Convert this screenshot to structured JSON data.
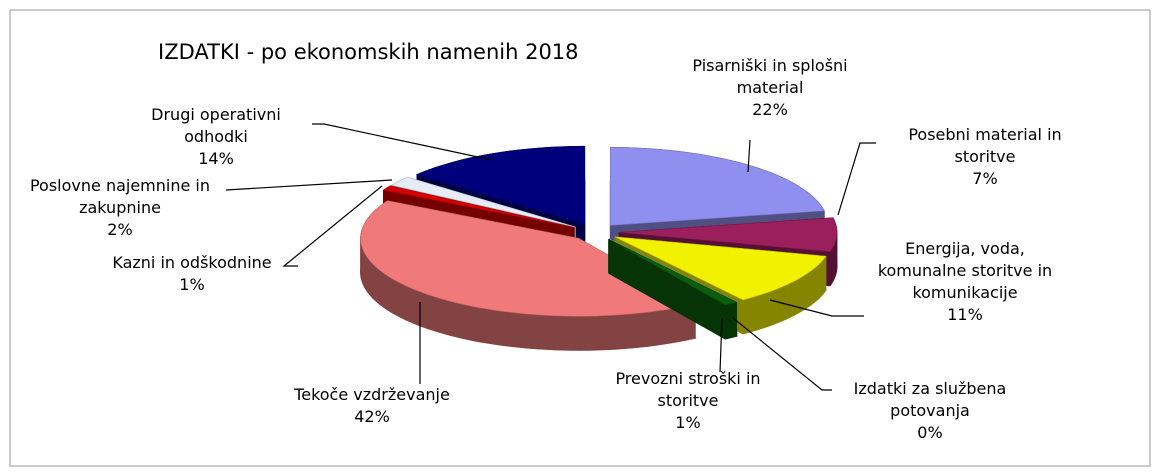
{
  "chart_data": {
    "type": "pie3d",
    "title": "IZDATKI - po ekonomskih namenih 2018",
    "categories": [
      "Pisarniški in splošni material",
      "Posebni material in storitve",
      "Energija, voda, komunalne storitve in komunikacije",
      "Izdatki za službena potovanja",
      "Prevozni stroški in storitve",
      "Tekoče vzdrževanje",
      "Kazni in odškodnine",
      "Poslovne najemnine in zakupnine",
      "Drugi operativni odhodki"
    ],
    "values": [
      22,
      7,
      11,
      0,
      1,
      42,
      1,
      2,
      14
    ],
    "value_labels": [
      "22%",
      "7%",
      "11%",
      "0%",
      "1%",
      "42%",
      "1%",
      "2%",
      "14%"
    ],
    "colors": [
      "#8f8ff0",
      "#9a1f5c",
      "#f2f200",
      "#9fc4e0",
      "#0b5e0b",
      "#f07a7a",
      "#d40000",
      "#e6ecf6",
      "#00007c"
    ]
  }
}
